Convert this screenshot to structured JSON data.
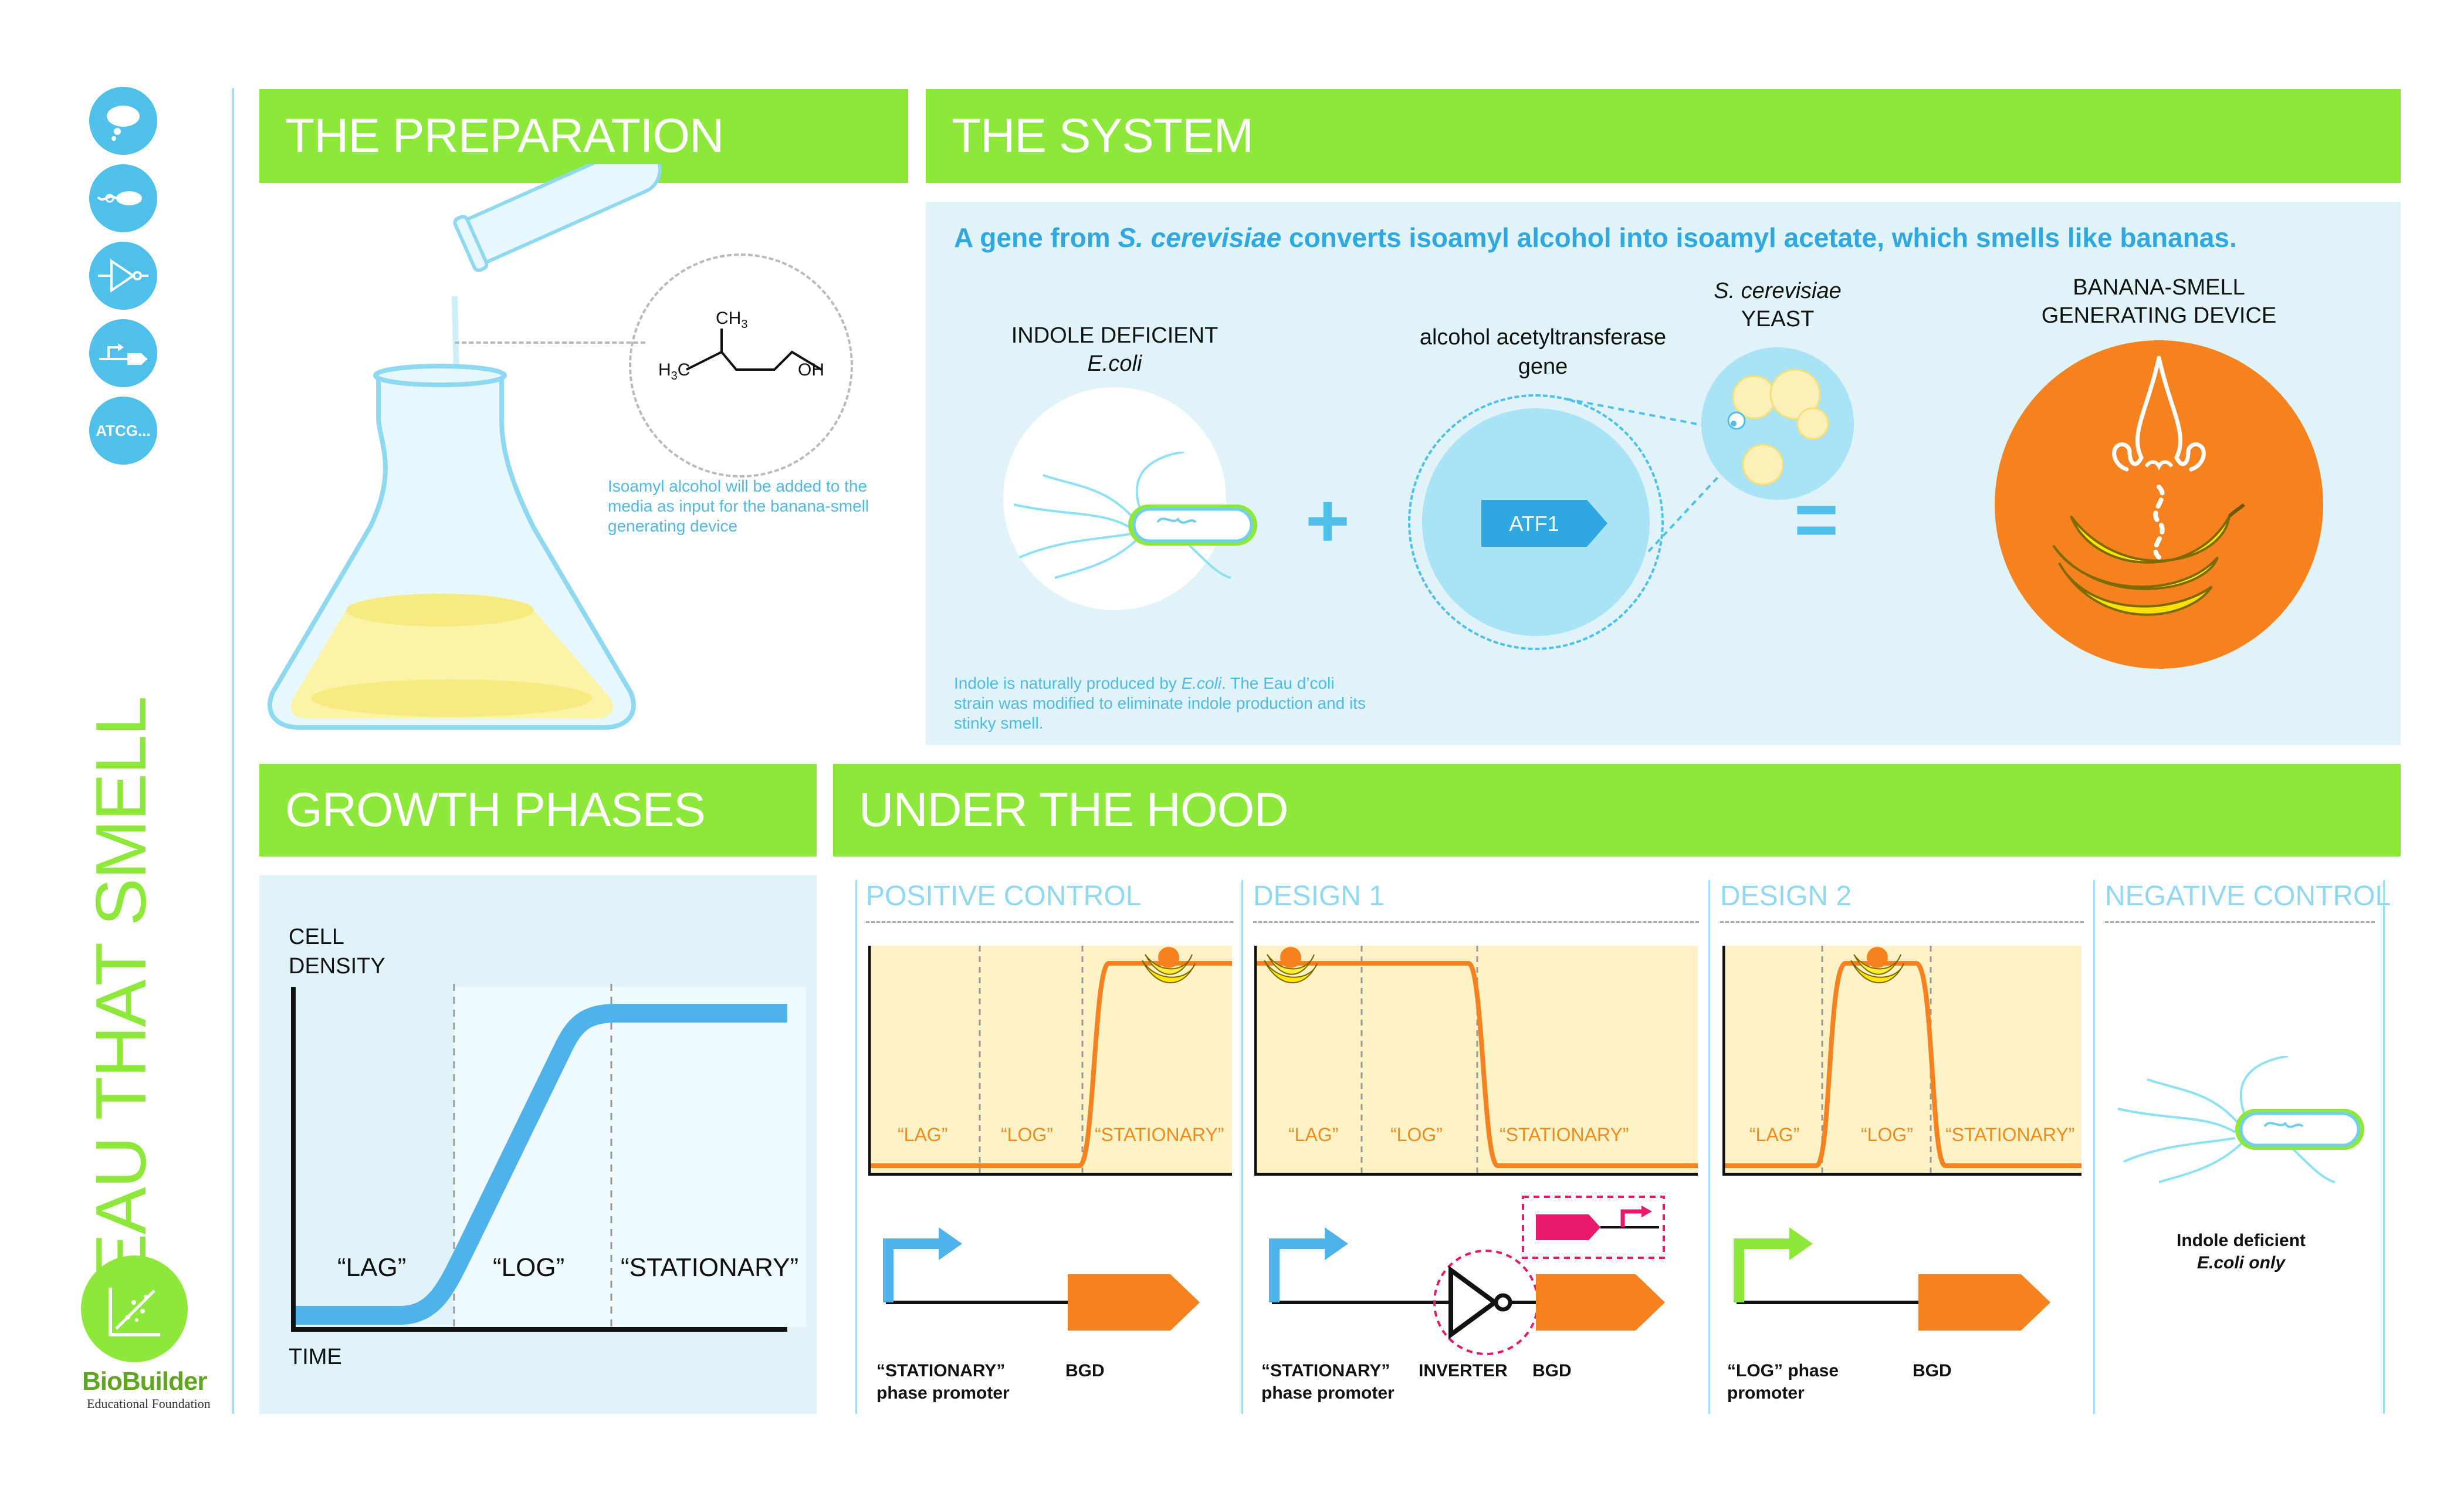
{
  "side": {
    "title": "EAU THAT SMELL",
    "icons": [
      "thought-bubble-icon",
      "bacteria-icon",
      "inverter-icon",
      "plasmid-icon",
      "dna-sequence-icon"
    ],
    "dna_icon_label": "ATCG...",
    "logo_brand": "BioBuilder",
    "logo_sub": "Educational Foundation"
  },
  "preparation": {
    "title": "THE PREPARATION",
    "molecule": {
      "ch3": "CH",
      "ch3_sub": "3",
      "h3c_h": "H",
      "h3c_sub": "3",
      "h3c_c": "C",
      "oh": "OH"
    },
    "note": "Isoamyl alcohol will be added to the media as input for the banana-smell generating device"
  },
  "system": {
    "title": "THE SYSTEM",
    "headline_pre": "A gene from ",
    "headline_species": "S. cerevisiae",
    "headline_post": " converts isoamyl alcohol into isoamyl acetate, which smells like bananas.",
    "ecoli_label_1": "INDOLE DEFICIENT",
    "ecoli_label_2": "E.coli",
    "gene_label_1": "alcohol acetyltransferase",
    "gene_label_2": "gene",
    "gene_name": "ATF1",
    "yeast_label_1": "S. cerevisiae",
    "yeast_label_2": "YEAST",
    "device_label_1": "BANANA-SMELL",
    "device_label_2": "GENERATING DEVICE",
    "plus": "+",
    "equals": "=",
    "note_pre": "Indole is naturally produced by ",
    "note_species": "E.coli",
    "note_post": ". The Eau d’coli strain was modified to eliminate indole production and its stinky smell."
  },
  "growth": {
    "title": "GROWTH PHASES",
    "ylabel_1": "CELL",
    "ylabel_2": "DENSITY",
    "xlabel": "TIME",
    "phases": [
      "“LAG”",
      "“LOG”",
      "“STATIONARY”"
    ]
  },
  "hood": {
    "title": "UNDER THE HOOD",
    "columns": [
      {
        "title": "POSITIVE CONTROL",
        "promoter_1": "“STATIONARY”",
        "promoter_2": "phase promoter",
        "gene": "BGD"
      },
      {
        "title": "DESIGN 1",
        "promoter_1": "“STATIONARY”",
        "promoter_2": "phase promoter",
        "inverter": "INVERTER",
        "gene": "BGD"
      },
      {
        "title": "DESIGN 2",
        "promoter_1": "“LOG” phase",
        "promoter_2": "promoter",
        "gene": "BGD"
      },
      {
        "title": "NEGATIVE CONTROL",
        "note_1": "Indole deficient",
        "note_2": "E.coli only"
      }
    ],
    "phase_labels": [
      "“LAG”",
      "“LOG”",
      "“STATIONARY”"
    ]
  },
  "colors": {
    "green": "#8ee83a",
    "blue": "#4fc0ea",
    "orange": "#f5821f",
    "light_blue_panel": "#dff3f8",
    "plot_yellow": "#fcf2c6",
    "magenta": "#e8196b"
  }
}
